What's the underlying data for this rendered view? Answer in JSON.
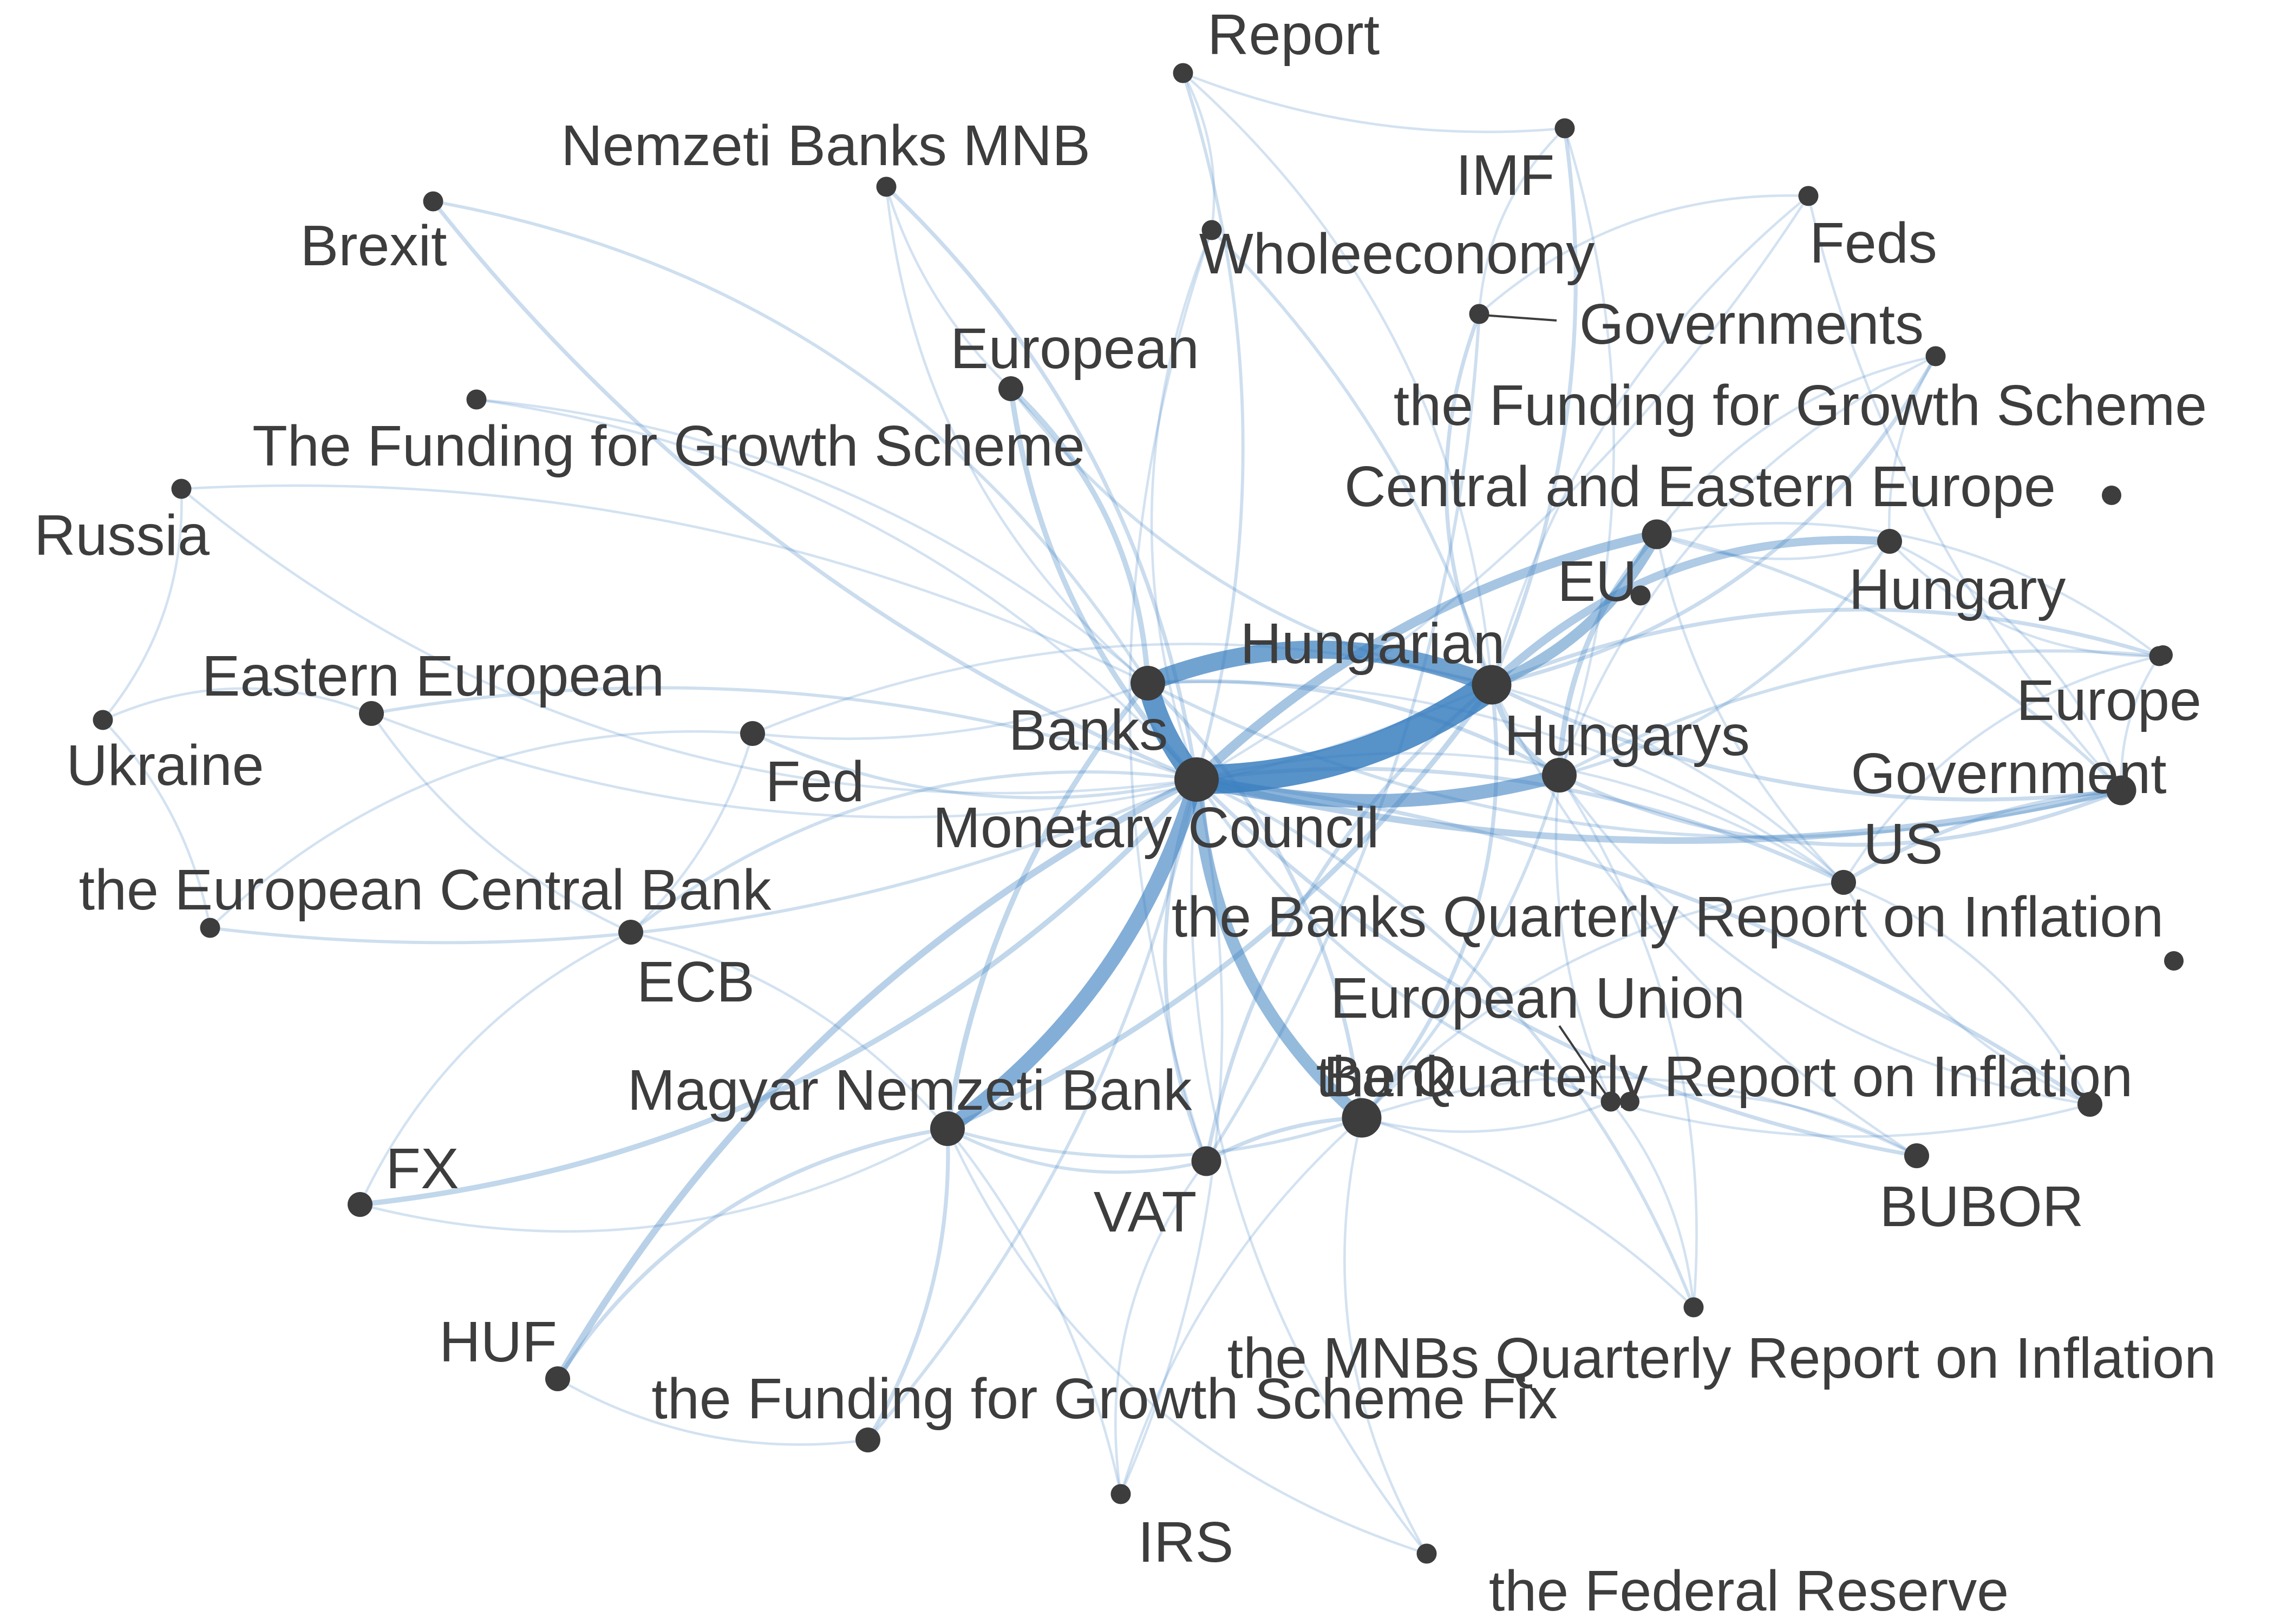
{
  "colors": {
    "edge": "#3a7fbf",
    "node": "#3d3d3d",
    "label": "#3d3d3d",
    "background": "#ffffff"
  },
  "nodes": [
    {
      "id": "report",
      "label": "Report",
      "weight": 1
    },
    {
      "id": "nemzeti_banks_mnb",
      "label": "Nemzeti Banks MNB",
      "weight": 1
    },
    {
      "id": "brexit",
      "label": "Brexit",
      "weight": 1
    },
    {
      "id": "imf",
      "label": "IMF",
      "weight": 1
    },
    {
      "id": "feds",
      "label": "Feds",
      "weight": 1
    },
    {
      "id": "wholeeconomy",
      "label": "Wholeeconomy",
      "weight": 1
    },
    {
      "id": "governments",
      "label": "Governments",
      "weight": 1
    },
    {
      "id": "european",
      "label": "European",
      "weight": 2
    },
    {
      "id": "ffgs_lower",
      "label": "the Funding for Growth Scheme",
      "weight": 1
    },
    {
      "id": "ffgs_upper",
      "label": "The Funding for Growth Scheme",
      "weight": 1
    },
    {
      "id": "cee",
      "label": "Central and Eastern Europe",
      "weight": 3
    },
    {
      "id": "russia",
      "label": "Russia",
      "weight": 1
    },
    {
      "id": "eu",
      "label": "EU",
      "weight": 1
    },
    {
      "id": "hungary",
      "label": "Hungary",
      "weight": 2
    },
    {
      "id": "hungarian",
      "label": "Hungarian",
      "weight": 5
    },
    {
      "id": "eastern_european",
      "label": "Eastern European",
      "weight": 2
    },
    {
      "id": "banks",
      "label": "Banks",
      "weight": 4
    },
    {
      "id": "europe",
      "label": "Europe",
      "weight": 1
    },
    {
      "id": "ukraine",
      "label": "Ukraine",
      "weight": 1
    },
    {
      "id": "fed",
      "label": "Fed",
      "weight": 2
    },
    {
      "id": "hungarys",
      "label": "Hungarys",
      "weight": 4
    },
    {
      "id": "government",
      "label": "Government",
      "weight": 3
    },
    {
      "id": "monetary_council",
      "label": "Monetary Council",
      "weight": 6
    },
    {
      "id": "us",
      "label": "US",
      "weight": 2
    },
    {
      "id": "ecb_full",
      "label": "the European Central Bank",
      "weight": 1
    },
    {
      "id": "banks_qri",
      "label": "the Banks Quarterly Report on Inflation",
      "weight": 1
    },
    {
      "id": "ecb",
      "label": "ECB",
      "weight": 2
    },
    {
      "id": "european_union",
      "label": "European Union",
      "weight": 1
    },
    {
      "id": "bank",
      "label": "Bank",
      "weight": 5
    },
    {
      "id": "the_qri",
      "label": "the Quarterly Report on Inflation",
      "weight": 2
    },
    {
      "id": "qri_right",
      "label": "",
      "weight": 2
    },
    {
      "id": "magyar",
      "label": "Magyar Nemzeti Bank",
      "weight": 4
    },
    {
      "id": "vat",
      "label": "VAT",
      "weight": 3
    },
    {
      "id": "bubor",
      "label": "BUBOR",
      "weight": 2
    },
    {
      "id": "fx",
      "label": "FX",
      "weight": 2
    },
    {
      "id": "mnbs_qri",
      "label": "the MNBs Quarterly Report on Inflation",
      "weight": 1
    },
    {
      "id": "huf",
      "label": "HUF",
      "weight": 2
    },
    {
      "id": "ffgs_fix",
      "label": "the Funding for Growth Scheme Fix",
      "weight": 2
    },
    {
      "id": "irs",
      "label": "IRS",
      "weight": 1
    },
    {
      "id": "federal_reserve",
      "label": "the Federal Reserve",
      "weight": 1
    }
  ],
  "edges": [
    [
      "monetary_council",
      "banks",
      14
    ],
    [
      "monetary_council",
      "hungarian",
      20
    ],
    [
      "banks",
      "hungarian",
      12
    ],
    [
      "monetary_council",
      "hungarys",
      9
    ],
    [
      "monetary_council",
      "magyar",
      10
    ],
    [
      "monetary_council",
      "bank",
      8
    ],
    [
      "monetary_council",
      "cee",
      6
    ],
    [
      "hungarian",
      "cee",
      7
    ],
    [
      "hungarian",
      "hungary",
      5
    ],
    [
      "monetary_council",
      "huf",
      4
    ],
    [
      "monetary_council",
      "fx",
      3
    ],
    [
      "monetary_council",
      "government",
      4
    ],
    [
      "monetary_council",
      "european",
      3
    ],
    [
      "banks",
      "european",
      3
    ],
    [
      "monetary_council",
      "brexit",
      2
    ],
    [
      "monetary_council",
      "nemzeti_banks_mnb",
      2
    ],
    [
      "hungarian",
      "governments",
      2
    ],
    [
      "hungarian",
      "imf",
      2
    ],
    [
      "hungarian",
      "europe",
      2
    ],
    [
      "hungarian",
      "ffgs_lower",
      2
    ],
    [
      "monetary_council",
      "us",
      2
    ],
    [
      "monetary_council",
      "vat",
      2
    ],
    [
      "monetary_council",
      "qri_right",
      2
    ],
    [
      "monetary_council",
      "bubor",
      2
    ],
    [
      "monetary_council",
      "mnbs_qri",
      1.5
    ],
    [
      "monetary_council",
      "eastern_european",
      1.5
    ],
    [
      "monetary_council",
      "fed",
      1.5
    ],
    [
      "monetary_council",
      "ecb",
      1.5
    ],
    [
      "monetary_council",
      "ecb_full",
      1.5
    ],
    [
      "monetary_council",
      "ffgs_upper",
      1
    ],
    [
      "monetary_council",
      "russia",
      1
    ],
    [
      "monetary_council",
      "report",
      1.5
    ],
    [
      "monetary_council",
      "wholeeconomy",
      1
    ],
    [
      "monetary_council",
      "feds",
      1
    ],
    [
      "monetary_council",
      "irs",
      1
    ],
    [
      "monetary_council",
      "federal_reserve",
      1
    ],
    [
      "monetary_council",
      "ffgs_fix",
      1.5
    ],
    [
      "monetary_council",
      "the_qri",
      1.5
    ],
    [
      "monetary_council",
      "banks_qri",
      1
    ],
    [
      "banks",
      "magyar",
      3
    ],
    [
      "banks",
      "bank",
      2
    ],
    [
      "banks",
      "brexit",
      1.5
    ],
    [
      "banks",
      "hungarys",
      2
    ],
    [
      "banks",
      "government",
      1.5
    ],
    [
      "banks",
      "fed",
      1
    ],
    [
      "banks",
      "ffgs_upper",
      1
    ],
    [
      "banks",
      "nemzeti_banks_mnb",
      1
    ],
    [
      "banks",
      "russia",
      1
    ],
    [
      "banks",
      "us",
      1
    ],
    [
      "hungarian",
      "hungarys",
      3
    ],
    [
      "hungarian",
      "magyar",
      3
    ],
    [
      "hungarian",
      "vat",
      2
    ],
    [
      "hungarian",
      "bank",
      2
    ],
    [
      "hungarian",
      "government",
      2
    ],
    [
      "hungarian",
      "european",
      1.5
    ],
    [
      "hungarian",
      "wholeeconomy",
      1.5
    ],
    [
      "hungarian",
      "feds",
      1
    ],
    [
      "hungarian",
      "report",
      1
    ],
    [
      "hungarian",
      "us",
      1
    ],
    [
      "hungarian",
      "fed",
      1
    ],
    [
      "hungarian",
      "eastern_european",
      1
    ],
    [
      "hungarian",
      "bubor",
      1
    ],
    [
      "hungarys",
      "cee",
      3
    ],
    [
      "hungarys",
      "government",
      2
    ],
    [
      "hungarys",
      "europe",
      1.5
    ],
    [
      "hungarys",
      "hungary",
      1.5
    ],
    [
      "hungarys",
      "bank",
      1.5
    ],
    [
      "hungarys",
      "imf",
      1
    ],
    [
      "hungarys",
      "ffgs_lower",
      1
    ],
    [
      "hungarys",
      "european_union",
      1
    ],
    [
      "hungarys",
      "mnbs_qri",
      1
    ],
    [
      "hungarys",
      "qri_right",
      1
    ],
    [
      "cee",
      "government",
      1.5
    ],
    [
      "cee",
      "hungary",
      1
    ],
    [
      "cee",
      "europe",
      1
    ],
    [
      "cee",
      "us",
      1
    ],
    [
      "cee",
      "ffgs_lower",
      1
    ],
    [
      "bank",
      "vat",
      2
    ],
    [
      "bank",
      "magyar",
      1.5
    ],
    [
      "bank",
      "federal_reserve",
      1
    ],
    [
      "bank",
      "mnbs_qri",
      1
    ],
    [
      "bank",
      "the_qri",
      1
    ],
    [
      "bank",
      "bubor",
      1
    ],
    [
      "bank",
      "irs",
      1
    ],
    [
      "bank",
      "us",
      1
    ],
    [
      "magyar",
      "huf",
      2
    ],
    [
      "magyar",
      "ffgs_fix",
      2
    ],
    [
      "magyar",
      "vat",
      1.5
    ],
    [
      "magyar",
      "irs",
      1
    ],
    [
      "magyar",
      "ecb",
      1
    ],
    [
      "magyar",
      "fx",
      1
    ],
    [
      "vat",
      "governments",
      1.5
    ],
    [
      "vat",
      "wholeeconomy",
      1
    ],
    [
      "vat",
      "irs",
      1
    ],
    [
      "ecb",
      "eastern_european",
      1
    ],
    [
      "ecb",
      "fx",
      1
    ],
    [
      "ecb_full",
      "fed",
      1
    ],
    [
      "ecb_full",
      "ukraine",
      1
    ],
    [
      "russia",
      "ukraine",
      1
    ],
    [
      "government",
      "us",
      2
    ],
    [
      "government",
      "europe",
      1
    ],
    [
      "government",
      "hungary",
      1
    ],
    [
      "government",
      "feds",
      1
    ],
    [
      "us",
      "qri_right",
      1
    ],
    [
      "us",
      "europe",
      1
    ],
    [
      "the_qri",
      "qri_right",
      1
    ],
    [
      "the_qri",
      "bubor",
      1
    ],
    [
      "hungary",
      "europe",
      1
    ],
    [
      "hungary",
      "ffgs_lower",
      1
    ],
    [
      "imf",
      "governments",
      1
    ],
    [
      "imf",
      "report",
      1
    ],
    [
      "wholeeconomy",
      "report",
      1
    ],
    [
      "governments",
      "feds",
      1
    ],
    [
      "nemzeti_banks_mnb",
      "european",
      1
    ],
    [
      "ffgs_fix",
      "huf",
      1
    ],
    [
      "eastern_european",
      "ukraine",
      1
    ],
    [
      "fed",
      "ecb",
      1
    ],
    [
      "european_union",
      "the_qri",
      1
    ],
    [
      "federal_reserve",
      "magyar",
      1
    ],
    [
      "mnbs_qri",
      "european_union",
      1
    ],
    [
      "banks_qri",
      "qri_right",
      1
    ]
  ]
}
